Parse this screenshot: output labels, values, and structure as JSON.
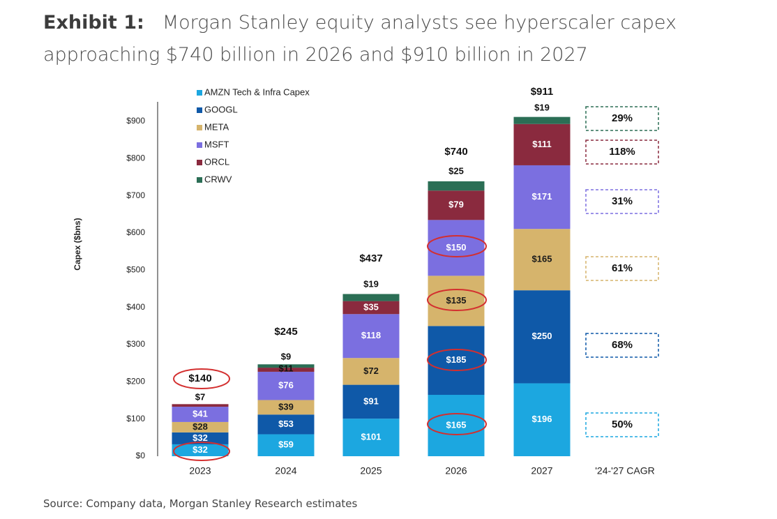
{
  "header": {
    "exhibit_label": "Exhibit 1:",
    "title": "Morgan Stanley equity analysts see hyperscaler capex approaching $740 billion in 2026 and $910 billion in 2027"
  },
  "footer": {
    "source": "Source: Company data, Morgan Stanley Research estimates"
  },
  "chart_data": {
    "type": "bar",
    "stacked": true,
    "ylabel": "Capex ($bns)",
    "xlabel": "",
    "ylim": [
      0,
      900
    ],
    "yticks": [
      0,
      100,
      200,
      300,
      400,
      500,
      600,
      700,
      800,
      900
    ],
    "ytick_labels": [
      "$0",
      "$100",
      "$200",
      "$300",
      "$400",
      "$500",
      "$600",
      "$700",
      "$800",
      "$900"
    ],
    "grid": false,
    "legend_position": "top-left",
    "categories": [
      "2023",
      "2024",
      "2025",
      "2026",
      "2027"
    ],
    "series": [
      {
        "name": "AMZN Tech & Infra Capex",
        "color": "#1ca7e0",
        "values": [
          32,
          59,
          101,
          165,
          196
        ],
        "labels": [
          "$32",
          "$59",
          "$101",
          "$165",
          "$196"
        ]
      },
      {
        "name": "GOOGL",
        "color": "#0f59a8",
        "values": [
          32,
          53,
          91,
          185,
          250
        ],
        "labels": [
          "$32",
          "$53",
          "$91",
          "$185",
          "$250"
        ]
      },
      {
        "name": "META",
        "color": "#d6b46c",
        "values": [
          28,
          39,
          72,
          135,
          165
        ],
        "labels": [
          "$28",
          "$39",
          "$72",
          "$135",
          "$165"
        ]
      },
      {
        "name": "MSFT",
        "color": "#7b6fe0",
        "values": [
          41,
          76,
          118,
          150,
          171
        ],
        "labels": [
          "$41",
          "$76",
          "$118",
          "$150",
          "$171"
        ]
      },
      {
        "name": "ORCL",
        "color": "#8a2a3e",
        "values": [
          7,
          11,
          35,
          79,
          111
        ],
        "labels": [
          "$7",
          "$11",
          "$35",
          "$79",
          "$111"
        ]
      },
      {
        "name": "CRWV",
        "color": "#2b6e55",
        "values": [
          0,
          9,
          19,
          25,
          19
        ],
        "labels": [
          "",
          "$9",
          "$19",
          "$25",
          "$19"
        ]
      }
    ],
    "totals": [
      140,
      245,
      437,
      740,
      911
    ],
    "total_labels": [
      "$140",
      "$245",
      "$437",
      "$740",
      "$911"
    ],
    "circled_labels": [
      "2023 total $140",
      "2023 AMZN $32",
      "2026 MSFT $150",
      "2026 META $135",
      "2026 GOOGL $185",
      "2026 AMZN $165"
    ],
    "cagr": {
      "header": "'24-'27 CAGR",
      "items": [
        {
          "series": "CRWV",
          "value": "29%",
          "color": "#2b6e55"
        },
        {
          "series": "ORCL",
          "value": "118%",
          "color": "#8a2a3e"
        },
        {
          "series": "MSFT",
          "value": "31%",
          "color": "#7b6fe0"
        },
        {
          "series": "META",
          "value": "61%",
          "color": "#d6b46c"
        },
        {
          "series": "GOOGL",
          "value": "68%",
          "color": "#0f59a8"
        },
        {
          "series": "AMZN Tech & Infra Capex",
          "value": "50%",
          "color": "#1ca7e0"
        }
      ]
    }
  }
}
